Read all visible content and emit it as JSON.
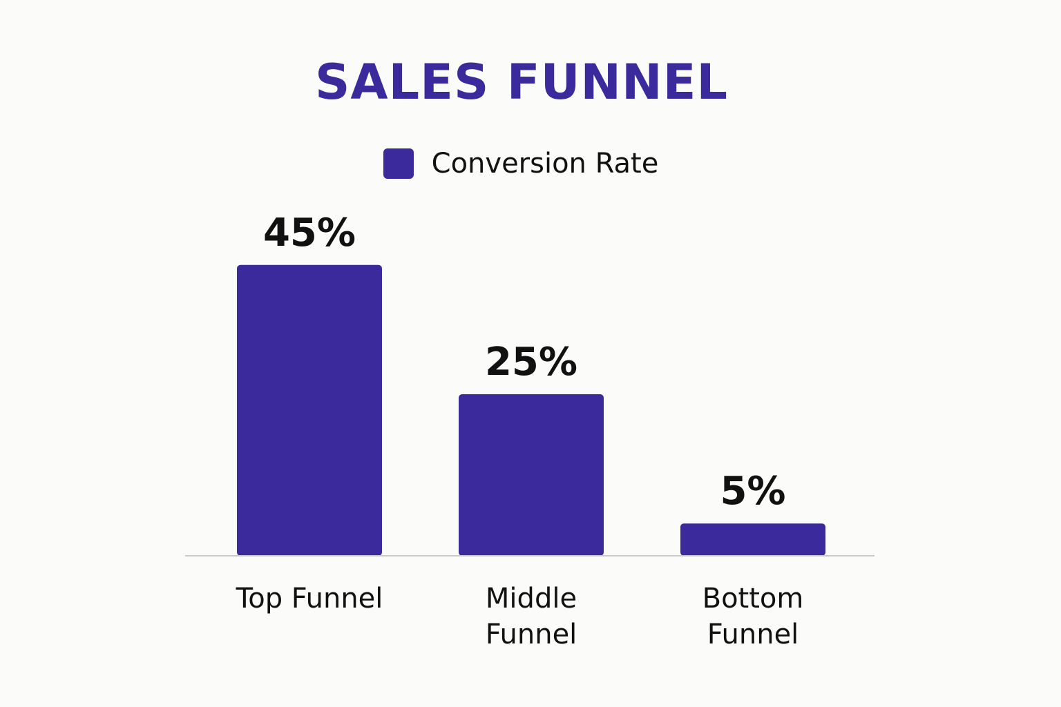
{
  "chart_data": {
    "type": "bar",
    "title": "SALES FUNNEL",
    "categories": [
      "Top Funnel",
      "Middle Funnel",
      "Bottom Funnel"
    ],
    "category_label_lines": [
      [
        "Top Funnel"
      ],
      [
        "Middle",
        "Funnel"
      ],
      [
        "Bottom",
        "Funnel"
      ]
    ],
    "series": [
      {
        "name": "Conversion Rate",
        "values": [
          45,
          25,
          5
        ],
        "value_labels": [
          "45%",
          "25%",
          "5%"
        ],
        "color": "#3a2a9c"
      }
    ],
    "legend_position": "top-center",
    "grid": false,
    "ylim": [
      0,
      50
    ]
  },
  "colors": {
    "accent": "#3a2a9c",
    "text": "#111111",
    "axis": "#c8c8c8",
    "background": "#fbfbf9"
  }
}
